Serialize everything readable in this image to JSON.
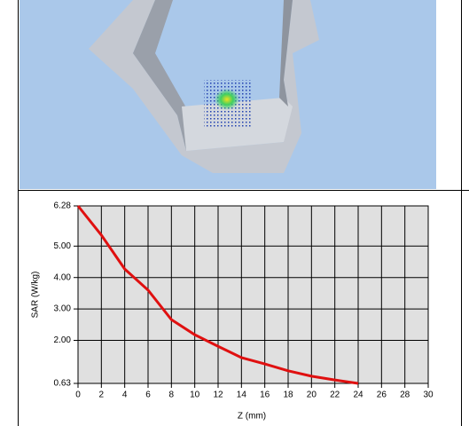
{
  "chart_data": {
    "type": "line",
    "ylabel": "SAR (W/kg)",
    "xlabel": "Z (mm)",
    "x": [
      0,
      2,
      4,
      6,
      8,
      10,
      12,
      14,
      16,
      18,
      20,
      22,
      24
    ],
    "series": [
      {
        "color": "#e01010",
        "values": [
          6.28,
          5.35,
          4.27,
          3.6,
          2.66,
          2.18,
          1.81,
          1.45,
          1.25,
          1.03,
          0.86,
          0.74,
          0.63
        ]
      }
    ],
    "xlim": [
      0,
      30
    ],
    "xticks": [
      0,
      2,
      4,
      6,
      8,
      10,
      12,
      14,
      16,
      18,
      20,
      22,
      24,
      26,
      28,
      30
    ],
    "ylim": [
      0.63,
      6.28
    ],
    "yticks": [
      {
        "value": 0.63,
        "label": "0.63"
      },
      {
        "value": 2,
        "label": "2.00"
      },
      {
        "value": 3,
        "label": "3.00"
      },
      {
        "value": 4,
        "label": "4.00"
      },
      {
        "value": 5,
        "label": "5.00"
      },
      {
        "value": 6.28,
        "label": "6.28"
      }
    ],
    "grid": true
  }
}
